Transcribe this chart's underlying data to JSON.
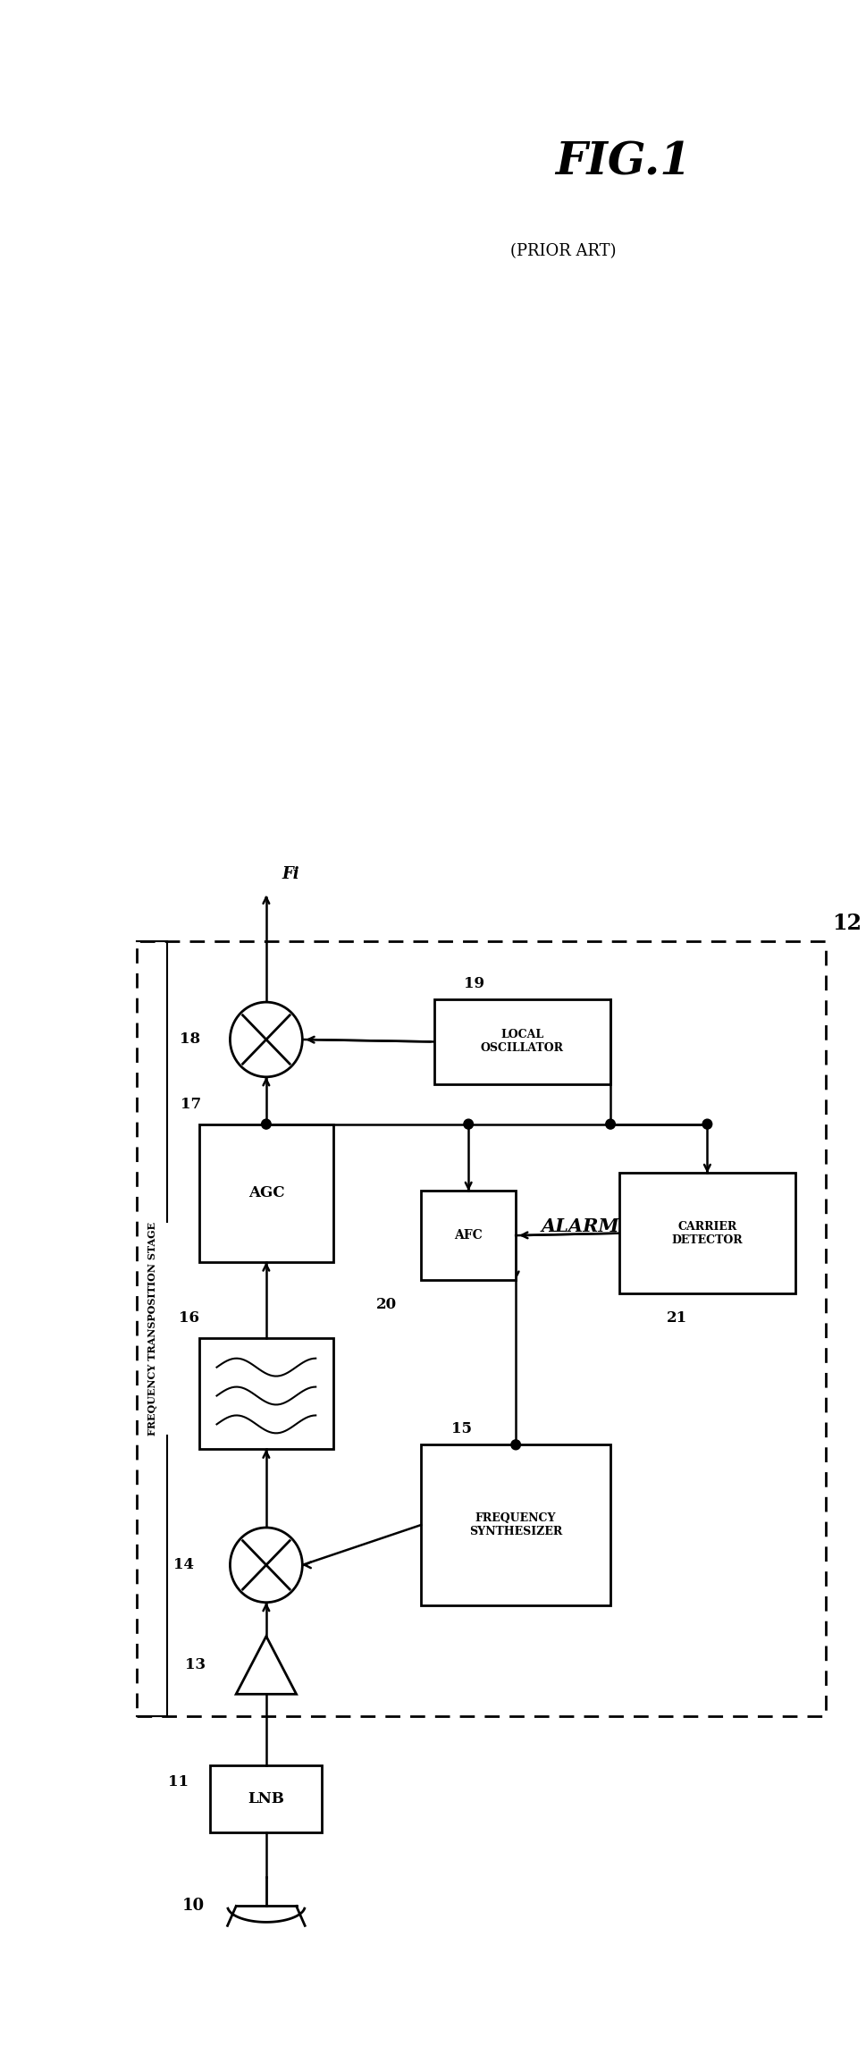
{
  "title": "FIG.1",
  "fig_label": "(PRIOR ART)",
  "ref_12": "12",
  "bg_color": "#ffffff",
  "line_color": "#000000",
  "figsize": [
    9.7,
    23.08
  ],
  "dpi": 100,
  "xlim": [
    0,
    9.7
  ],
  "ylim": [
    0,
    23.08
  ],
  "components": {
    "lnb": {
      "label": "LNB",
      "ref": "11"
    },
    "amp": {
      "ref": "13"
    },
    "mixer1": {
      "ref": "14"
    },
    "synth": {
      "label": "FREQUENCY\nSYNTHESIZER",
      "ref": "15"
    },
    "filter": {
      "ref": "16"
    },
    "agc": {
      "label": "AGC",
      "ref": "17"
    },
    "mixer2": {
      "ref": "18"
    },
    "osc": {
      "label": "LOCAL\nOSCILLATOR",
      "ref": "19"
    },
    "afc": {
      "label": "AFC",
      "ref": "20"
    },
    "carrier": {
      "label": "CARRIER\nDETECTOR",
      "ref": "21"
    },
    "alarm": {
      "label": "ALARM"
    }
  },
  "freq_trans_label": "FREQUENCY TRANSPOSITION STAGE",
  "fi_label": "Fi",
  "ref_10": "10"
}
